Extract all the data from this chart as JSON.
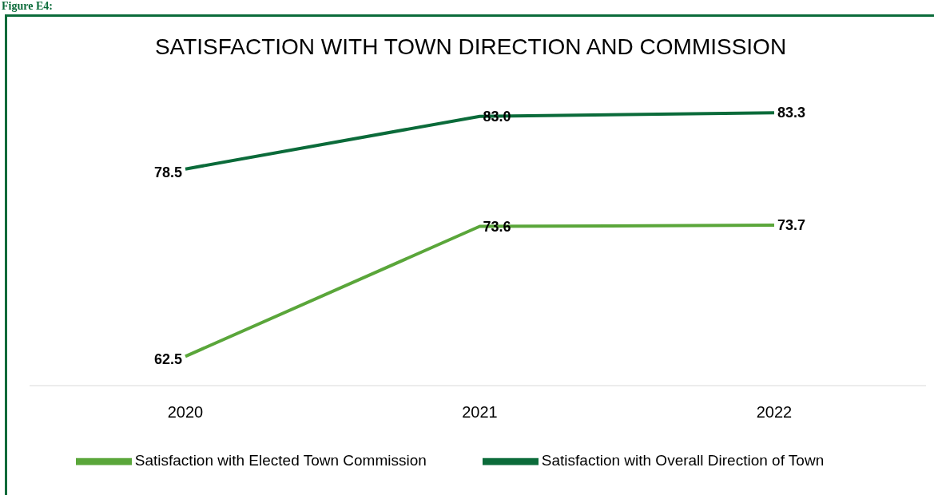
{
  "chart_data": {
    "type": "line",
    "title": "SATISFACTION WITH TOWN DIRECTION AND COMMISSION",
    "annotations": [
      "Figure E4:"
    ],
    "categories": [
      "2020",
      "2021",
      "2022"
    ],
    "series": [
      {
        "name": "Satisfaction with Overall Direction of Town",
        "color": "#0b6b3a",
        "values": [
          78.5,
          83.0,
          83.3
        ],
        "value_labels": [
          "78.5",
          "83.0",
          "83.3"
        ]
      },
      {
        "name": "Satisfaction with Elected Town Commission",
        "color": "#5aa63a",
        "values": [
          62.5,
          73.6,
          73.7
        ],
        "value_labels": [
          "62.5",
          "73.6",
          "73.7"
        ]
      }
    ],
    "tick_labels": "x",
    "grid": false,
    "legend": "bottom",
    "marker": "none",
    "line_style": "solid"
  }
}
